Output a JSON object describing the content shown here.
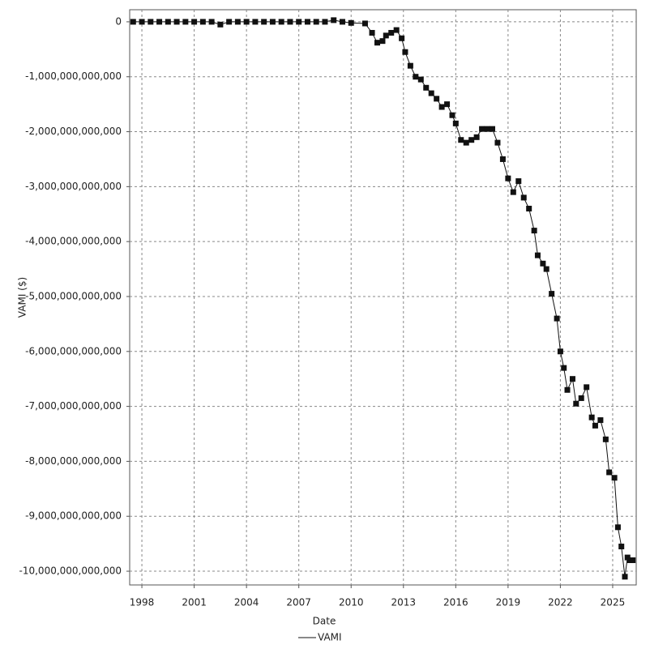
{
  "chart_data": {
    "type": "line",
    "x_label": "Date",
    "y_label": "VAMI ($)",
    "xlim": [
      1997.3,
      2026.35
    ],
    "xticks": [
      1998,
      2001,
      2004,
      2007,
      2010,
      2013,
      2016,
      2019,
      2022,
      2025
    ],
    "ylim": [
      -10250000000000.0,
      220000000000.0
    ],
    "yticks": [
      0,
      {
        "value": -1000000000000.0,
        "label": "-1,000,000,000,000"
      },
      {
        "value": -2000000000000.0,
        "label": "-2,000,000,000,000"
      },
      {
        "value": -3000000000000.0,
        "label": "-3,000,000,000,000"
      },
      {
        "value": -4000000000000.0,
        "label": "-4,000,000,000,000"
      },
      {
        "value": -5000000000000.0,
        "label": "-5,000,000,000,000"
      },
      {
        "value": -6000000000000.0,
        "label": "-6,000,000,000,000"
      },
      {
        "value": -7000000000000.0,
        "label": "-7,000,000,000,000"
      },
      {
        "value": -8000000000000.0,
        "label": "-8,000,000,000,000"
      },
      {
        "value": -9000000000000.0,
        "label": "-9,000,000,000,000"
      },
      {
        "value": -10000000000000.0,
        "label": "-10,000,000,000,000"
      }
    ],
    "grid": true,
    "legend": "bottom",
    "x": [
      1997.5,
      1998,
      1998.5,
      1999,
      1999.5,
      2000,
      2000.5,
      2001,
      2001.5,
      2002,
      2002.5,
      2003,
      2003.5,
      2004,
      2004.5,
      2005,
      2005.5,
      2006,
      2006.5,
      2007,
      2007.5,
      2008,
      2008.5,
      2009,
      2009.5,
      2010,
      2010.8,
      2011.2,
      2011.5,
      2011.8,
      2012.0,
      2012.3,
      2012.6,
      2012.9,
      2013.1,
      2013.4,
      2013.7,
      2014.0,
      2014.3,
      2014.6,
      2014.9,
      2015.2,
      2015.5,
      2015.8,
      2016.0,
      2016.3,
      2016.6,
      2016.9,
      2017.2,
      2017.5,
      2017.8,
      2018.1,
      2018.4,
      2018.7,
      2019.0,
      2019.3,
      2019.6,
      2019.9,
      2020.2,
      2020.5,
      2020.7,
      2021.0,
      2021.2,
      2021.5,
      2021.8,
      2022.0,
      2022.2,
      2022.4,
      2022.7,
      2022.9,
      2023.2,
      2023.5,
      2023.8,
      2024.0,
      2024.3,
      2024.6,
      2024.8,
      2025.1,
      2025.3,
      2025.5,
      2025.7,
      2025.85,
      2026.0,
      2026.15
    ],
    "series": [
      {
        "name": "VAMI",
        "color": "#111111",
        "values": [
          0,
          0,
          0,
          0,
          0,
          0,
          0,
          0,
          0,
          0,
          -50000000000.0,
          0,
          0,
          0,
          0,
          0,
          0,
          0,
          0,
          0,
          0,
          0,
          0,
          30000000000.0,
          0,
          -20000000000.0,
          -30000000000.0,
          -200000000000.0,
          -380000000000.0,
          -350000000000.0,
          -250000000000.0,
          -200000000000.0,
          -150000000000.0,
          -300000000000.0,
          -550000000000.0,
          -800000000000.0,
          -1000000000000.0,
          -1050000000000.0,
          -1200000000000.0,
          -1300000000000.0,
          -1400000000000.0,
          -1550000000000.0,
          -1500000000000.0,
          -1700000000000.0,
          -1850000000000.0,
          -2150000000000.0,
          -2200000000000.0,
          -2150000000000.0,
          -2100000000000.0,
          -1950000000000.0,
          -1950000000000.0,
          -1950000000000.0,
          -2200000000000.0,
          -2500000000000.0,
          -2850000000000.0,
          -3100000000000.0,
          -2900000000000.0,
          -3200000000000.0,
          -3400000000000.0,
          -3800000000000.0,
          -4250000000000.0,
          -4400000000000.0,
          -4500000000000.0,
          -4950000000000.0,
          -5400000000000.0,
          -6000000000000.0,
          -6300000000000.0,
          -6700000000000.0,
          -6500000000000.0,
          -6950000000000.0,
          -6850000000000.0,
          -6650000000000.0,
          -7200000000000.0,
          -7350000000000.0,
          -7250000000000.0,
          -7600000000000.0,
          -8200000000000.0,
          -8300000000000.0,
          -9200000000000.0,
          -9550000000000.0,
          -10100000000000.0,
          -9750000000000.0,
          -9800000000000.0,
          -9800000000000.0
        ]
      }
    ]
  }
}
